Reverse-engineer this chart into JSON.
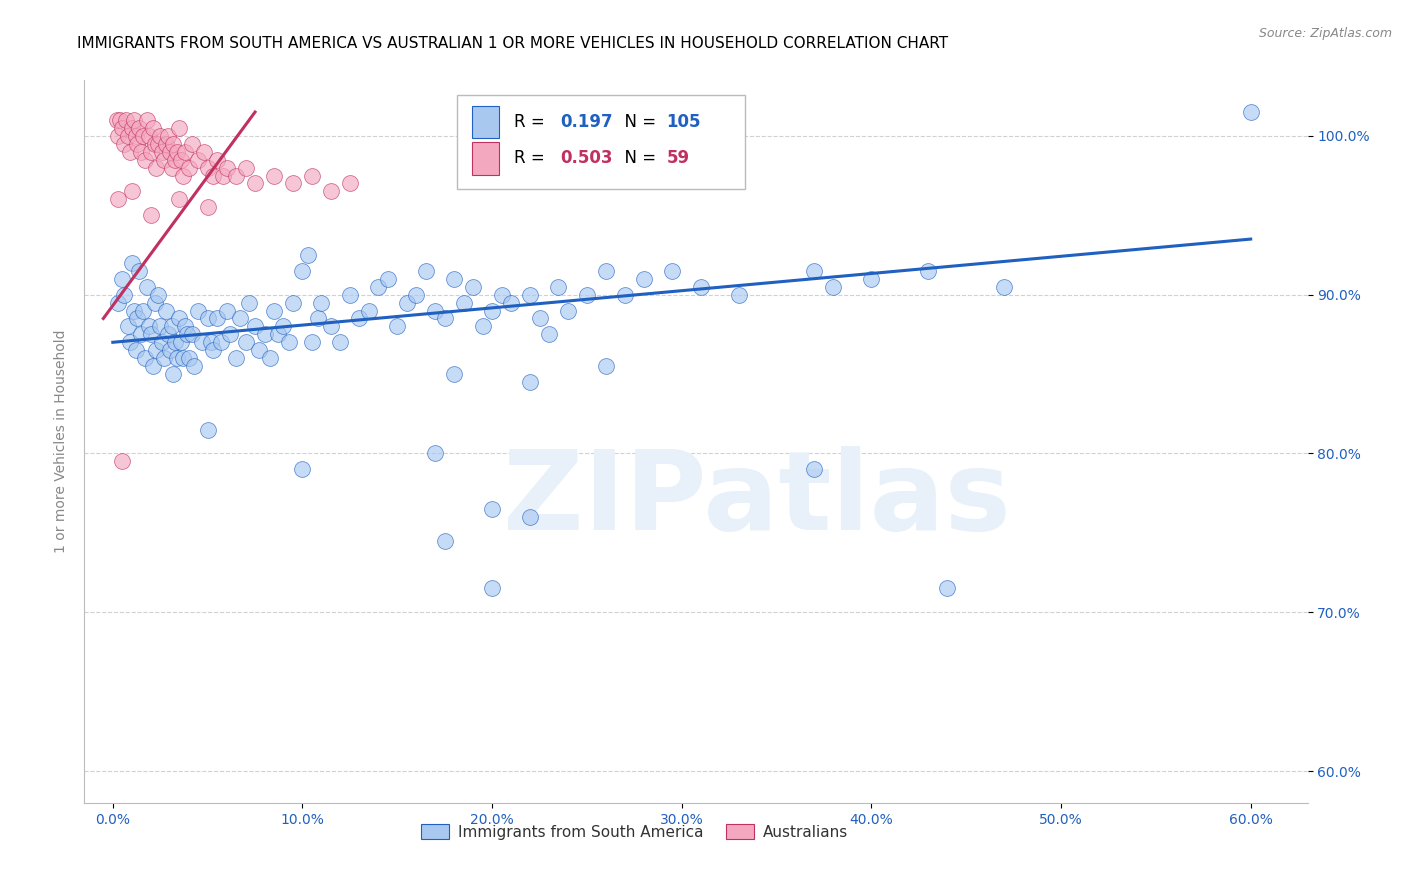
{
  "title": "IMMIGRANTS FROM SOUTH AMERICA VS AUSTRALIAN 1 OR MORE VEHICLES IN HOUSEHOLD CORRELATION CHART",
  "source": "Source: ZipAtlas.com",
  "ylabel": "1 or more Vehicles in Household",
  "x_tick_labels": [
    "0.0%",
    "10.0%",
    "20.0%",
    "30.0%",
    "40.0%",
    "50.0%",
    "60.0%"
  ],
  "x_tick_vals": [
    0.0,
    10.0,
    20.0,
    30.0,
    40.0,
    50.0,
    60.0
  ],
  "y_tick_labels": [
    "60.0%",
    "70.0%",
    "80.0%",
    "90.0%",
    "100.0%"
  ],
  "y_tick_vals": [
    60.0,
    70.0,
    80.0,
    90.0,
    100.0
  ],
  "xlim": [
    -1.5,
    63.0
  ],
  "ylim": [
    58.0,
    103.5
  ],
  "legend_label_blue": "Immigrants from South America",
  "legend_label_pink": "Australians",
  "R_blue": 0.197,
  "N_blue": 105,
  "R_pink": 0.503,
  "N_pink": 59,
  "blue_color": "#A8C8F0",
  "pink_color": "#F4A8C0",
  "line_blue": "#2060C0",
  "line_pink": "#C03060",
  "title_fontsize": 11,
  "source_fontsize": 9,
  "watermark_text": "ZIPatlas",
  "watermark_color": "#E8F0FA",
  "blue_scatter": [
    [
      0.3,
      89.5
    ],
    [
      0.5,
      91.0
    ],
    [
      0.6,
      90.0
    ],
    [
      0.8,
      88.0
    ],
    [
      0.9,
      87.0
    ],
    [
      1.0,
      92.0
    ],
    [
      1.1,
      89.0
    ],
    [
      1.2,
      86.5
    ],
    [
      1.3,
      88.5
    ],
    [
      1.4,
      91.5
    ],
    [
      1.5,
      87.5
    ],
    [
      1.6,
      89.0
    ],
    [
      1.7,
      86.0
    ],
    [
      1.8,
      90.5
    ],
    [
      1.9,
      88.0
    ],
    [
      2.0,
      87.5
    ],
    [
      2.1,
      85.5
    ],
    [
      2.2,
      89.5
    ],
    [
      2.3,
      86.5
    ],
    [
      2.4,
      90.0
    ],
    [
      2.5,
      88.0
    ],
    [
      2.6,
      87.0
    ],
    [
      2.7,
      86.0
    ],
    [
      2.8,
      89.0
    ],
    [
      2.9,
      87.5
    ],
    [
      3.0,
      86.5
    ],
    [
      3.1,
      88.0
    ],
    [
      3.2,
      85.0
    ],
    [
      3.3,
      87.0
    ],
    [
      3.4,
      86.0
    ],
    [
      3.5,
      88.5
    ],
    [
      3.6,
      87.0
    ],
    [
      3.7,
      86.0
    ],
    [
      3.8,
      88.0
    ],
    [
      3.9,
      87.5
    ],
    [
      4.0,
      86.0
    ],
    [
      4.2,
      87.5
    ],
    [
      4.3,
      85.5
    ],
    [
      4.5,
      89.0
    ],
    [
      4.7,
      87.0
    ],
    [
      5.0,
      88.5
    ],
    [
      5.2,
      87.0
    ],
    [
      5.3,
      86.5
    ],
    [
      5.5,
      88.5
    ],
    [
      5.7,
      87.0
    ],
    [
      6.0,
      89.0
    ],
    [
      6.2,
      87.5
    ],
    [
      6.5,
      86.0
    ],
    [
      6.7,
      88.5
    ],
    [
      7.0,
      87.0
    ],
    [
      7.2,
      89.5
    ],
    [
      7.5,
      88.0
    ],
    [
      7.7,
      86.5
    ],
    [
      8.0,
      87.5
    ],
    [
      8.3,
      86.0
    ],
    [
      8.5,
      89.0
    ],
    [
      8.7,
      87.5
    ],
    [
      9.0,
      88.0
    ],
    [
      9.3,
      87.0
    ],
    [
      9.5,
      89.5
    ],
    [
      10.0,
      91.5
    ],
    [
      10.3,
      92.5
    ],
    [
      10.5,
      87.0
    ],
    [
      10.8,
      88.5
    ],
    [
      11.0,
      89.5
    ],
    [
      11.5,
      88.0
    ],
    [
      12.0,
      87.0
    ],
    [
      12.5,
      90.0
    ],
    [
      13.0,
      88.5
    ],
    [
      13.5,
      89.0
    ],
    [
      14.0,
      90.5
    ],
    [
      14.5,
      91.0
    ],
    [
      15.0,
      88.0
    ],
    [
      15.5,
      89.5
    ],
    [
      16.0,
      90.0
    ],
    [
      16.5,
      91.5
    ],
    [
      17.0,
      89.0
    ],
    [
      17.5,
      88.5
    ],
    [
      18.0,
      91.0
    ],
    [
      18.5,
      89.5
    ],
    [
      19.0,
      90.5
    ],
    [
      19.5,
      88.0
    ],
    [
      20.0,
      89.0
    ],
    [
      20.5,
      90.0
    ],
    [
      21.0,
      89.5
    ],
    [
      22.0,
      90.0
    ],
    [
      22.5,
      88.5
    ],
    [
      23.0,
      87.5
    ],
    [
      23.5,
      90.5
    ],
    [
      24.0,
      89.0
    ],
    [
      25.0,
      90.0
    ],
    [
      26.0,
      91.5
    ],
    [
      27.0,
      90.0
    ],
    [
      28.0,
      91.0
    ],
    [
      29.5,
      91.5
    ],
    [
      31.0,
      90.5
    ],
    [
      33.0,
      90.0
    ],
    [
      37.0,
      91.5
    ],
    [
      38.0,
      90.5
    ],
    [
      40.0,
      91.0
    ],
    [
      43.0,
      91.5
    ],
    [
      47.0,
      90.5
    ],
    [
      5.0,
      81.5
    ],
    [
      10.0,
      79.0
    ],
    [
      17.0,
      80.0
    ],
    [
      18.0,
      85.0
    ],
    [
      22.0,
      84.5
    ],
    [
      26.0,
      85.5
    ],
    [
      20.0,
      76.5
    ],
    [
      22.0,
      76.0
    ],
    [
      37.0,
      79.0
    ],
    [
      17.5,
      74.5
    ],
    [
      20.0,
      71.5
    ],
    [
      44.0,
      71.5
    ],
    [
      60.0,
      101.5
    ]
  ],
  "pink_scatter": [
    [
      0.2,
      101.0
    ],
    [
      0.3,
      100.0
    ],
    [
      0.4,
      101.0
    ],
    [
      0.5,
      100.5
    ],
    [
      0.6,
      99.5
    ],
    [
      0.7,
      101.0
    ],
    [
      0.8,
      100.0
    ],
    [
      0.9,
      99.0
    ],
    [
      1.0,
      100.5
    ],
    [
      1.1,
      101.0
    ],
    [
      1.2,
      100.0
    ],
    [
      1.3,
      99.5
    ],
    [
      1.4,
      100.5
    ],
    [
      1.5,
      99.0
    ],
    [
      1.6,
      100.0
    ],
    [
      1.7,
      98.5
    ],
    [
      1.8,
      101.0
    ],
    [
      1.9,
      100.0
    ],
    [
      2.0,
      99.0
    ],
    [
      2.1,
      100.5
    ],
    [
      2.2,
      99.5
    ],
    [
      2.3,
      98.0
    ],
    [
      2.4,
      99.5
    ],
    [
      2.5,
      100.0
    ],
    [
      2.6,
      99.0
    ],
    [
      2.7,
      98.5
    ],
    [
      2.8,
      99.5
    ],
    [
      2.9,
      100.0
    ],
    [
      3.0,
      99.0
    ],
    [
      3.1,
      98.0
    ],
    [
      3.2,
      99.5
    ],
    [
      3.3,
      98.5
    ],
    [
      3.4,
      99.0
    ],
    [
      3.5,
      100.5
    ],
    [
      3.6,
      98.5
    ],
    [
      3.7,
      97.5
    ],
    [
      3.8,
      99.0
    ],
    [
      4.0,
      98.0
    ],
    [
      4.2,
      99.5
    ],
    [
      4.5,
      98.5
    ],
    [
      4.8,
      99.0
    ],
    [
      5.0,
      98.0
    ],
    [
      5.3,
      97.5
    ],
    [
      5.5,
      98.5
    ],
    [
      5.8,
      97.5
    ],
    [
      6.0,
      98.0
    ],
    [
      6.5,
      97.5
    ],
    [
      7.0,
      98.0
    ],
    [
      7.5,
      97.0
    ],
    [
      8.5,
      97.5
    ],
    [
      9.5,
      97.0
    ],
    [
      10.5,
      97.5
    ],
    [
      11.5,
      96.5
    ],
    [
      12.5,
      97.0
    ],
    [
      0.3,
      96.0
    ],
    [
      1.0,
      96.5
    ],
    [
      2.0,
      95.0
    ],
    [
      3.5,
      96.0
    ],
    [
      5.0,
      95.5
    ],
    [
      0.5,
      79.5
    ]
  ],
  "pink_line_x": [
    -0.5,
    7.5
  ],
  "pink_line_y": [
    88.5,
    101.5
  ],
  "blue_line_x": [
    0.0,
    60.0
  ],
  "blue_line_y": [
    87.0,
    93.5
  ]
}
